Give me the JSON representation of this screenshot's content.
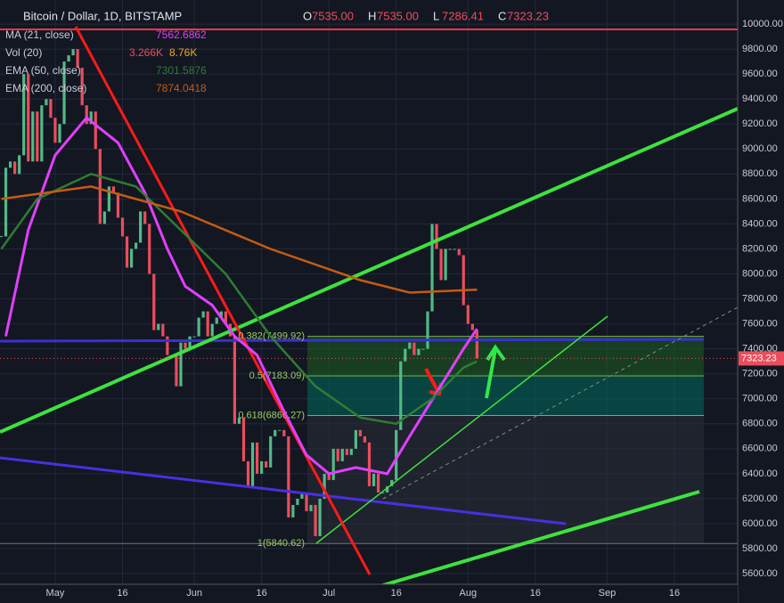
{
  "chart_data": {
    "type": "candlestick",
    "title": "Bitcoin / Dollar, 1D, BITSTAMP",
    "ohlc": [
      {
        "label": "O",
        "value": "7535.00"
      },
      {
        "label": "H",
        "value": "7535.00"
      },
      {
        "label": "L",
        "value": "7286.41"
      },
      {
        "label": "C",
        "value": "7323.23"
      }
    ],
    "xlim": [
      108.7,
      273.1
    ],
    "ylim": [
      5365,
      10193
    ],
    "xticks": [
      {
        "value": 121,
        "label": "May"
      },
      {
        "value": 136,
        "label": "16"
      },
      {
        "value": 152,
        "label": "Jun"
      },
      {
        "value": 167,
        "label": "16"
      },
      {
        "value": 182,
        "label": "Jul"
      },
      {
        "value": 197,
        "label": "16"
      },
      {
        "value": 213,
        "label": "Aug"
      },
      {
        "value": 228,
        "label": "16"
      },
      {
        "value": 244,
        "label": "Sep"
      },
      {
        "value": 259,
        "label": "16"
      }
    ],
    "yticks": [
      {
        "value": 5600,
        "label": "5600.00"
      },
      {
        "value": 5800,
        "label": "5800.00"
      },
      {
        "value": 6000,
        "label": "6000.00"
      },
      {
        "value": 6200,
        "label": "6200.00"
      },
      {
        "value": 6400,
        "label": "6400.00"
      },
      {
        "value": 6600,
        "label": "6600.00"
      },
      {
        "value": 6800,
        "label": "6800.00"
      },
      {
        "value": 7000,
        "label": "7000.00"
      },
      {
        "value": 7200,
        "label": "7200.00"
      },
      {
        "value": 7400,
        "label": "7400.00"
      },
      {
        "value": 7600,
        "label": "7600.00"
      },
      {
        "value": 7800,
        "label": "7800.00"
      },
      {
        "value": 8000,
        "label": "8000.00"
      },
      {
        "value": 8200,
        "label": "8200.00"
      },
      {
        "value": 8400,
        "label": "8400.00"
      },
      {
        "value": 8600,
        "label": "8600.00"
      },
      {
        "value": 8800,
        "label": "8800.00"
      },
      {
        "value": 9000,
        "label": "9000.00"
      },
      {
        "value": 9200,
        "label": "9200.00"
      },
      {
        "value": 9400,
        "label": "9400.00"
      },
      {
        "value": 9600,
        "label": "9600.00"
      },
      {
        "value": 9800,
        "label": "9800.00"
      },
      {
        "value": 10000,
        "label": "10000.00"
      }
    ],
    "grid": true,
    "up_color": "#53b987",
    "down_color": "#eb4d5c",
    "series": [
      {
        "name": "BTCUSD",
        "x": [
          109,
          110,
          111,
          112,
          113,
          114,
          115,
          116,
          117,
          118,
          119,
          120,
          121,
          122,
          123,
          124,
          125,
          126,
          127,
          128,
          129,
          130,
          131,
          132,
          133,
          134,
          135,
          136,
          137,
          138,
          139,
          140,
          141,
          142,
          143,
          144,
          145,
          146,
          147,
          148,
          149,
          150,
          151,
          152,
          153,
          154,
          155,
          156,
          157,
          158,
          159,
          160,
          161,
          162,
          163,
          164,
          165,
          166,
          167,
          168,
          169,
          170,
          171,
          172,
          173,
          174,
          175,
          176,
          177,
          178,
          179,
          180,
          181,
          182,
          183,
          184,
          185,
          186,
          187,
          188,
          189,
          190,
          191,
          192,
          193,
          194,
          195,
          196,
          197,
          198,
          199,
          200,
          201,
          202,
          203,
          204,
          205,
          206,
          207,
          208,
          209,
          210,
          211,
          212,
          213,
          214,
          215
        ],
        "values": [
          8300,
          8850,
          8900,
          8800,
          8950,
          9600,
          8900,
          9300,
          8900,
          9350,
          9400,
          9250,
          9050,
          9200,
          9700,
          9750,
          9800,
          9650,
          9350,
          9200,
          9300,
          9000,
          8400,
          8500,
          8700,
          8650,
          8450,
          8300,
          8050,
          8200,
          8250,
          8500,
          8400,
          8000,
          7550,
          7600,
          7500,
          7350,
          7350,
          7100,
          7450,
          7400,
          7500,
          7500,
          7650,
          7700,
          7500,
          7600,
          7650,
          7700,
          7600,
          7500,
          6800,
          6850,
          6500,
          6300,
          6650,
          6400,
          6500,
          6450,
          6700,
          6750,
          6750,
          6700,
          6050,
          6150,
          6200,
          6250,
          6100,
          6150,
          5900,
          6200,
          6400,
          6350,
          6600,
          6500,
          6600,
          6550,
          6600,
          6750,
          6700,
          6650,
          6300,
          6400,
          6250,
          6250,
          6300,
          6350,
          6750,
          7300,
          7400,
          7450,
          7350,
          7400,
          7400,
          7700,
          8400,
          8200,
          7950,
          8200,
          8200,
          8200,
          8150,
          7750,
          7600,
          7550,
          7323.23
        ]
      },
      {
        "name": "MA (21, close)",
        "legend_value": "7562.6862",
        "color": "#e040fb",
        "x": [
          110,
          115,
          121,
          128,
          135,
          141,
          146,
          150,
          156,
          161,
          166,
          172,
          177,
          182,
          188,
          195,
          200,
          206,
          212,
          215
        ],
        "values": [
          7500,
          8350,
          8950,
          9250,
          9050,
          8650,
          8200,
          7900,
          7750,
          7500,
          7350,
          6900,
          6550,
          6400,
          6450,
          6400,
          6700,
          7050,
          7400,
          7560
        ]
      },
      {
        "name": "EMA (50, close)",
        "legend_value": "7301.5876",
        "color": "#2e7d32",
        "x": [
          109,
          117,
          129,
          139,
          149,
          159,
          169,
          179,
          189,
          197,
          205,
          212,
          215
        ],
        "values": [
          8200,
          8600,
          8800,
          8700,
          8350,
          8000,
          7500,
          7100,
          6850,
          6800,
          7000,
          7250,
          7300
        ]
      },
      {
        "name": "EMA (200, close)",
        "legend_value": "7874.0418",
        "color": "#c75b12",
        "x": [
          109,
          129,
          149,
          169,
          189,
          200,
          215
        ],
        "values": [
          8600,
          8700,
          8500,
          8200,
          7950,
          7850,
          7874
        ]
      }
    ],
    "volume": {
      "name": "Vol (20)",
      "value_a": "3.266K",
      "value_b": "8.76K"
    },
    "fib": [
      {
        "value": 7499.92,
        "label": "0.382(7499.92)"
      },
      {
        "value": 7183.09,
        "label": "0.5(7183.09)"
      },
      {
        "value": 6866.27,
        "label": "0.618(6866.27)"
      },
      {
        "value": 5840.62,
        "label": "1(5840.62)"
      }
    ]
  }
}
